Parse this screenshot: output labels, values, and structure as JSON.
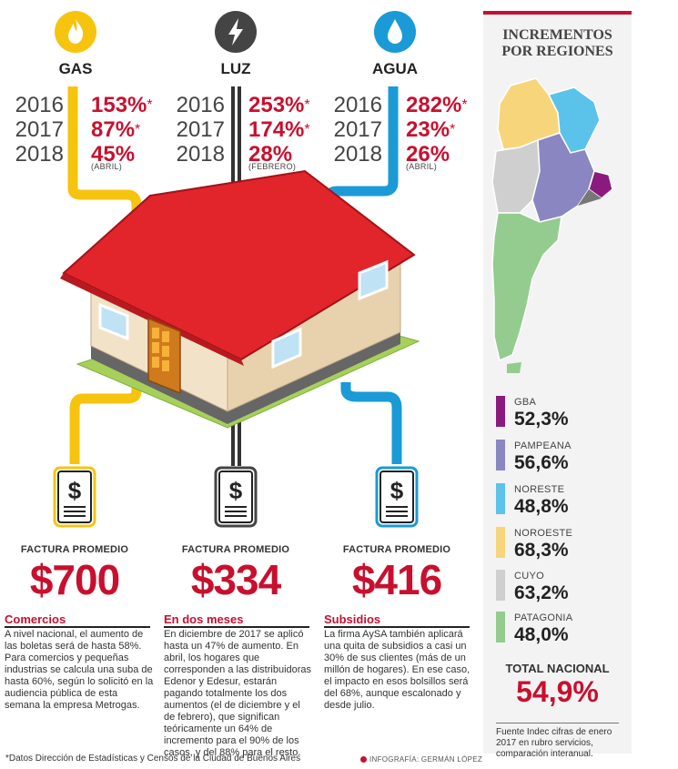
{
  "utilities": {
    "gas": {
      "name": "GAS",
      "color": "#f6c40f",
      "years": [
        "2016",
        "2017",
        "2018"
      ],
      "values": [
        "153%",
        "87%",
        "45%"
      ],
      "starred": [
        true,
        true,
        false
      ],
      "note_2018": "(ABRIL)",
      "invoice_label": "FACTURA PROMEDIO",
      "invoice_amount": "$700",
      "icon": "flame-icon"
    },
    "luz": {
      "name": "LUZ",
      "color": "#444444",
      "years": [
        "2016",
        "2017",
        "2018"
      ],
      "values": [
        "253%",
        "174%",
        "28%"
      ],
      "starred": [
        true,
        true,
        false
      ],
      "note_2018": "(FEBRERO)",
      "invoice_label": "FACTURA PROMEDIO",
      "invoice_amount": "$334",
      "icon": "lightning-icon"
    },
    "agua": {
      "name": "AGUA",
      "color": "#1a9ad6",
      "years": [
        "2016",
        "2017",
        "2018"
      ],
      "values": [
        "282%",
        "23%",
        "26%"
      ],
      "starred": [
        true,
        true,
        false
      ],
      "note_2018": "(ABRIL)",
      "invoice_label": "FACTURA PROMEDIO",
      "invoice_amount": "$416",
      "icon": "water-drop-icon"
    }
  },
  "star": "*",
  "bill_symbol": "$",
  "columns": [
    {
      "title": "Comercios",
      "text": "A nivel nacional, el aumento de las boletas será de hasta 58%. Para comercios y pequeñas industrias se calcula una suba de hasta 60%, según lo solicitó en la audiencia pública de esta semana la empresa Metrogas."
    },
    {
      "title": "En dos meses",
      "text": "En diciembre de 2017 se aplicó hasta un 47% de aumento. En abril, los hogares que corresponden a las distribuidoras Edenor y Edesur, estarán pagando totalmente los dos aumentos (el de diciembre y el de febrero), que significan teóricamente un 64% de incremento para el 90% de los casos, y del 88% para el resto."
    },
    {
      "title": "Subsidios",
      "text": "La firma AySA también aplicará una quita de subsidios a casi un 30% de sus clientes (más de un millón de hogares). En ese caso, el impacto en esos bolsillos será del 68%, aunque escalonado y desde julio."
    }
  ],
  "sidebar": {
    "title_line1": "INCREMENTOS",
    "title_line2": "POR REGIONES",
    "regions": [
      {
        "name": "GBA",
        "value": "52,3%",
        "color": "#8b1a7e"
      },
      {
        "name": "PAMPEANA",
        "value": "56,6%",
        "color": "#8a86c2"
      },
      {
        "name": "NORESTE",
        "value": "48,8%",
        "color": "#5bc2ea"
      },
      {
        "name": "NOROESTE",
        "value": "68,3%",
        "color": "#f7d57a"
      },
      {
        "name": "CUYO",
        "value": "63,2%",
        "color": "#cfcfcf"
      },
      {
        "name": "PATAGONIA",
        "value": "48,0%",
        "color": "#93cc8e"
      }
    ],
    "total_label": "TOTAL NACIONAL",
    "total_value": "54,9%",
    "source": "Fuente Indec cifras de enero 2017 en rubro servicios, comparación interanual."
  },
  "footnote": "*Datos Dirección de Estadísticas y Censos de la Ciudad de Buenos Aires",
  "credit": "INFOGRAFÍA: GERMÁN LÓPEZ"
}
